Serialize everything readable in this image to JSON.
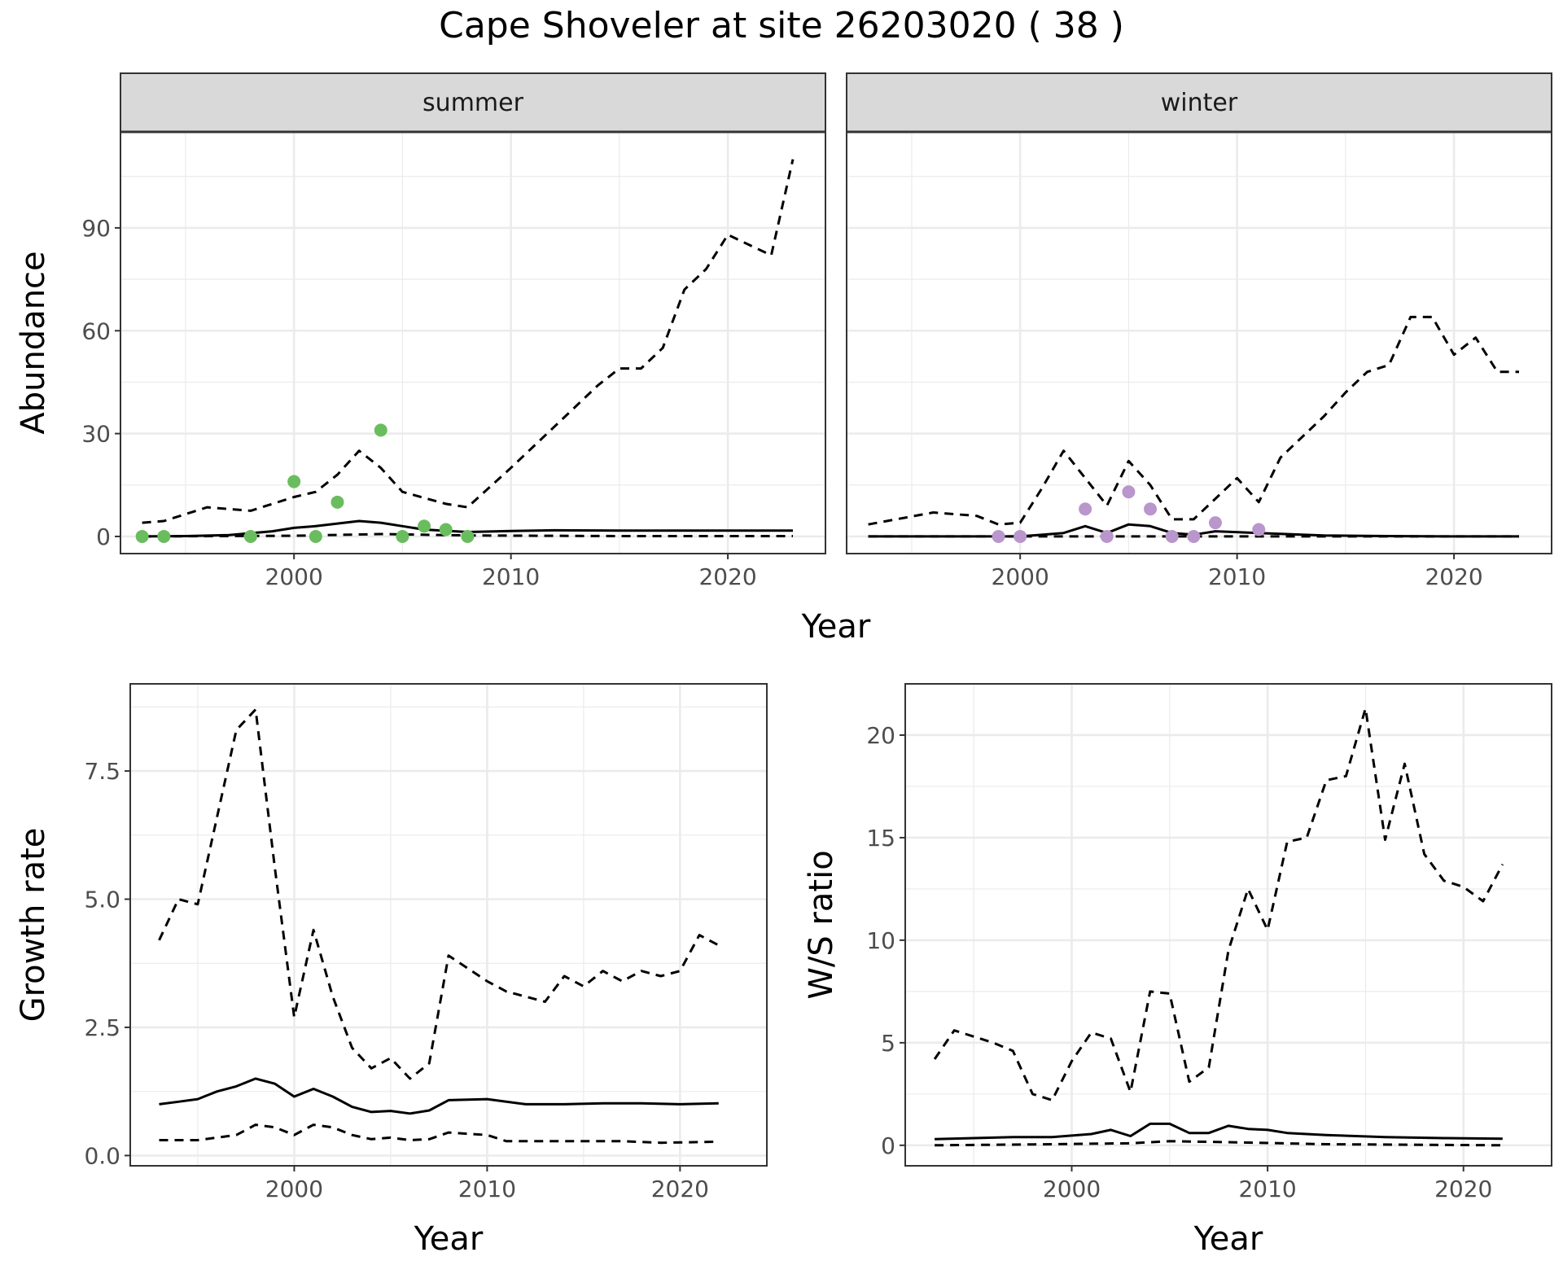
{
  "title": "Cape Shoveler at site 26203020 ( 38 )",
  "chart_data": [
    {
      "type": "line",
      "panel": "abundance",
      "facets": [
        "summer",
        "winter"
      ],
      "xlabel": "Year",
      "ylabel": "Abundance",
      "xlim": [
        1992,
        2024.5
      ],
      "ylim": [
        -5,
        118
      ],
      "xticks": [
        2000,
        2010,
        2020
      ],
      "yticks": [
        0,
        30,
        60,
        90
      ],
      "grid": true,
      "series": {
        "summer": {
          "mean": {
            "x": [
              1993,
              1995,
              1997,
              1999,
              2000,
              2001,
              2003,
              2004,
              2005,
              2006,
              2008,
              2010,
              2012,
              2015,
              2020,
              2023
            ],
            "y": [
              0,
              0.1,
              0.4,
              1.5,
              2.5,
              3,
              4.5,
              4,
              3,
              2,
              1.3,
              1.6,
              1.8,
              1.7,
              1.7,
              1.7
            ]
          },
          "upper": {
            "x": [
              1993,
              1994,
              1996,
              1998,
              2000,
              2001,
              2002,
              2003,
              2004,
              2005,
              2007,
              2008,
              2010,
              2012,
              2013,
              2014,
              2015,
              2016,
              2017,
              2018,
              2019,
              2020,
              2021,
              2022,
              2023
            ],
            "y": [
              4,
              4.5,
              8.5,
              7.5,
              11.5,
              13,
              18,
              25,
              20,
              13,
              9.5,
              8.5,
              20,
              32,
              38,
              44,
              49,
              49,
              55,
              72,
              78,
              88,
              85,
              82,
              110
            ]
          },
          "lower": {
            "x": [
              1993,
              2000,
              2004,
              2008,
              2015,
              2023
            ],
            "y": [
              0,
              0.2,
              0.7,
              0.3,
              0.1,
              0.1
            ]
          },
          "points": {
            "x": [
              1993,
              1994,
              1998,
              2000,
              2001,
              2002,
              2004,
              2005,
              2006,
              2007,
              2008
            ],
            "y": [
              0,
              0,
              0,
              16,
              0,
              10,
              31,
              0,
              3,
              2,
              0
            ]
          }
        },
        "winter": {
          "mean": {
            "x": [
              1993,
              2000,
              2002,
              2003,
              2004,
              2005,
              2006,
              2007,
              2008,
              2009,
              2011,
              2014,
              2017,
              2020,
              2023
            ],
            "y": [
              0,
              0,
              1,
              3,
              1,
              3.5,
              3,
              1,
              0.5,
              1.5,
              1,
              0.3,
              0.1,
              0,
              0
            ]
          },
          "upper": {
            "x": [
              1993,
              1996,
              1998,
              1999,
              2000,
              2001,
              2002,
              2003,
              2004,
              2005,
              2006,
              2007,
              2008,
              2009,
              2010,
              2011,
              2012,
              2014,
              2015,
              2016,
              2017,
              2018,
              2019,
              2020,
              2021,
              2022,
              2023
            ],
            "y": [
              3.5,
              7,
              6,
              3.5,
              4,
              14,
              25,
              17,
              9,
              22,
              15,
              5,
              5,
              11,
              17,
              10,
              23,
              35,
              42,
              48,
              50,
              64,
              64,
              53,
              58,
              48,
              48
            ]
          },
          "lower": {
            "x": [
              1993,
              2023
            ],
            "y": [
              0,
              0
            ]
          },
          "points": {
            "x": [
              1999,
              2000,
              2003,
              2004,
              2005,
              2006,
              2007,
              2008,
              2009,
              2011
            ],
            "y": [
              0,
              0,
              8,
              0,
              13,
              8,
              0,
              0,
              4,
              2
            ]
          }
        }
      },
      "colors": {
        "summer_points": "#6abd5e",
        "winter_points": "#b996cb",
        "lines": "#000000",
        "strip": "#d9d9d9",
        "grid": "#ebebeb"
      }
    },
    {
      "type": "line",
      "panel": "growth",
      "xlabel": "Year",
      "ylabel": "Growth rate",
      "xlim": [
        1991.5,
        2024.5
      ],
      "ylim": [
        -0.2,
        9.2
      ],
      "xticks": [
        2000,
        2010,
        2020
      ],
      "yticks": [
        0.0,
        2.5,
        5.0,
        7.5
      ],
      "ytick_labels": [
        "0.0",
        "2.5",
        "5.0",
        "7.5"
      ],
      "grid": true,
      "series": [
        {
          "role": "mean",
          "x": [
            1993,
            1994,
            1995,
            1996,
            1997,
            1998,
            1999,
            2000,
            2001,
            2002,
            2003,
            2004,
            2005,
            2006,
            2007,
            2008,
            2010,
            2012,
            2014,
            2016,
            2018,
            2020,
            2022
          ],
          "y": [
            1.0,
            1.05,
            1.1,
            1.25,
            1.35,
            1.5,
            1.4,
            1.15,
            1.3,
            1.15,
            0.95,
            0.85,
            0.87,
            0.82,
            0.88,
            1.08,
            1.1,
            1.0,
            1.0,
            1.02,
            1.02,
            1.0,
            1.02
          ]
        },
        {
          "role": "upper",
          "x": [
            1993,
            1994,
            1995,
            1996,
            1997,
            1998,
            1999,
            2000,
            2001,
            2002,
            2003,
            2004,
            2005,
            2006,
            2007,
            2008,
            2010,
            2011,
            2013,
            2014,
            2015,
            2016,
            2017,
            2018,
            2019,
            2020,
            2021,
            2022
          ],
          "y": [
            4.2,
            5.0,
            4.9,
            6.6,
            8.3,
            8.7,
            5.6,
            2.7,
            4.4,
            3.1,
            2.1,
            1.7,
            1.9,
            1.5,
            1.8,
            3.9,
            3.4,
            3.2,
            3.0,
            3.5,
            3.3,
            3.6,
            3.4,
            3.6,
            3.5,
            3.6,
            4.3,
            4.1
          ]
        },
        {
          "role": "lower",
          "x": [
            1993,
            1995,
            1997,
            1998,
            1999,
            2000,
            2001,
            2002,
            2003,
            2004,
            2005,
            2006,
            2007,
            2008,
            2010,
            2011,
            2014,
            2017,
            2019,
            2022
          ],
          "y": [
            0.3,
            0.3,
            0.4,
            0.6,
            0.55,
            0.4,
            0.6,
            0.55,
            0.4,
            0.32,
            0.35,
            0.3,
            0.32,
            0.45,
            0.4,
            0.28,
            0.28,
            0.28,
            0.25,
            0.27
          ]
        }
      ]
    },
    {
      "type": "line",
      "panel": "ratio",
      "xlabel": "Year",
      "ylabel": "W/S ratio",
      "xlim": [
        1991.5,
        2024.5
      ],
      "ylim": [
        -1,
        22.5
      ],
      "xticks": [
        2000,
        2010,
        2020
      ],
      "yticks": [
        0,
        5,
        10,
        15,
        20
      ],
      "grid": true,
      "series": [
        {
          "role": "mean",
          "x": [
            1993,
            1995,
            1997,
            1999,
            2001,
            2002,
            2003,
            2004,
            2005,
            2006,
            2007,
            2008,
            2009,
            2010,
            2011,
            2013,
            2016,
            2019,
            2022
          ],
          "y": [
            0.3,
            0.35,
            0.4,
            0.4,
            0.55,
            0.75,
            0.45,
            1.05,
            1.05,
            0.6,
            0.6,
            0.95,
            0.8,
            0.75,
            0.6,
            0.5,
            0.4,
            0.35,
            0.32
          ]
        },
        {
          "role": "upper",
          "x": [
            1993,
            1994,
            1995,
            1996,
            1997,
            1998,
            1999,
            2000,
            2001,
            2002,
            2003,
            2004,
            2005,
            2006,
            2007,
            2008,
            2009,
            2010,
            2011,
            2012,
            2013,
            2014,
            2015,
            2016,
            2017,
            2018,
            2019,
            2020,
            2021,
            2022
          ],
          "y": [
            4.2,
            5.6,
            5.3,
            5.0,
            4.6,
            2.5,
            2.2,
            4.1,
            5.5,
            5.2,
            2.6,
            7.5,
            7.4,
            3.1,
            3.8,
            9.5,
            12.5,
            10.5,
            14.8,
            15.0,
            17.8,
            18.0,
            21.3,
            14.9,
            18.6,
            14.2,
            12.9,
            12.6,
            11.9,
            13.7
          ]
        },
        {
          "role": "lower",
          "x": [
            1993,
            1999,
            2003,
            2005,
            2008,
            2013,
            2022
          ],
          "y": [
            0,
            0.05,
            0.1,
            0.2,
            0.15,
            0.05,
            0
          ]
        }
      ]
    }
  ]
}
